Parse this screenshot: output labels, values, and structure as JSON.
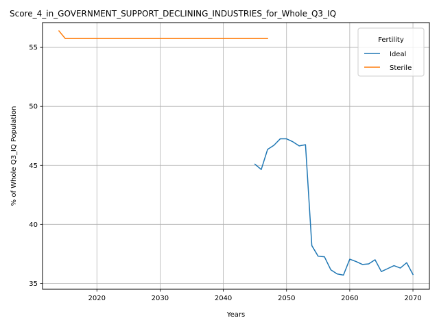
{
  "chart_data": {
    "type": "line",
    "title": "Score_4_in_GOVERNMENT_SUPPORT_DECLINING_INDUSTRIES_for_Whole_Q3_IQ",
    "xlabel": "Years",
    "ylabel": "% of Whole Q3_IQ Population",
    "xlim": [
      2011.4,
      2072.6
    ],
    "ylim": [
      34.5,
      57.1
    ],
    "xticks": [
      2020,
      2030,
      2040,
      2050,
      2060,
      2070
    ],
    "yticks": [
      35,
      40,
      45,
      50,
      55
    ],
    "grid": true,
    "legend": {
      "title": "Fertility",
      "placement": "top-right",
      "entries": [
        "Ideal",
        "Sterile"
      ]
    },
    "series": [
      {
        "name": "Ideal",
        "color": "#1f77b4",
        "x": [
          2045,
          2046,
          2047,
          2048,
          2049,
          2050,
          2051,
          2052,
          2053,
          2054,
          2055,
          2056,
          2057,
          2058,
          2059,
          2060,
          2061,
          2062,
          2063,
          2064,
          2065,
          2066,
          2067,
          2068,
          2069,
          2070
        ],
        "y": [
          45.1,
          44.65,
          46.35,
          46.7,
          47.25,
          47.25,
          47.0,
          46.65,
          46.75,
          38.2,
          37.3,
          37.25,
          36.15,
          35.8,
          35.7,
          37.05,
          36.85,
          36.6,
          36.65,
          37.0,
          36.0,
          36.25,
          36.5,
          36.3,
          36.75,
          35.75
        ]
      },
      {
        "name": "Sterile",
        "color": "#ff7f0e",
        "x": [
          2014,
          2015,
          2016,
          2017,
          2018,
          2019,
          2020,
          2021,
          2022,
          2023,
          2024,
          2025,
          2026,
          2027,
          2028,
          2029,
          2030,
          2031,
          2032,
          2033,
          2034,
          2035,
          2036,
          2037,
          2038,
          2039,
          2040,
          2041,
          2042,
          2043,
          2044,
          2045,
          2046,
          2047
        ],
        "y": [
          56.4,
          55.75,
          55.75,
          55.75,
          55.75,
          55.75,
          55.75,
          55.75,
          55.75,
          55.75,
          55.75,
          55.75,
          55.75,
          55.75,
          55.75,
          55.75,
          55.75,
          55.75,
          55.75,
          55.75,
          55.75,
          55.75,
          55.75,
          55.75,
          55.75,
          55.75,
          55.75,
          55.75,
          55.75,
          55.75,
          55.75,
          55.75,
          55.75,
          55.75
        ]
      }
    ]
  }
}
